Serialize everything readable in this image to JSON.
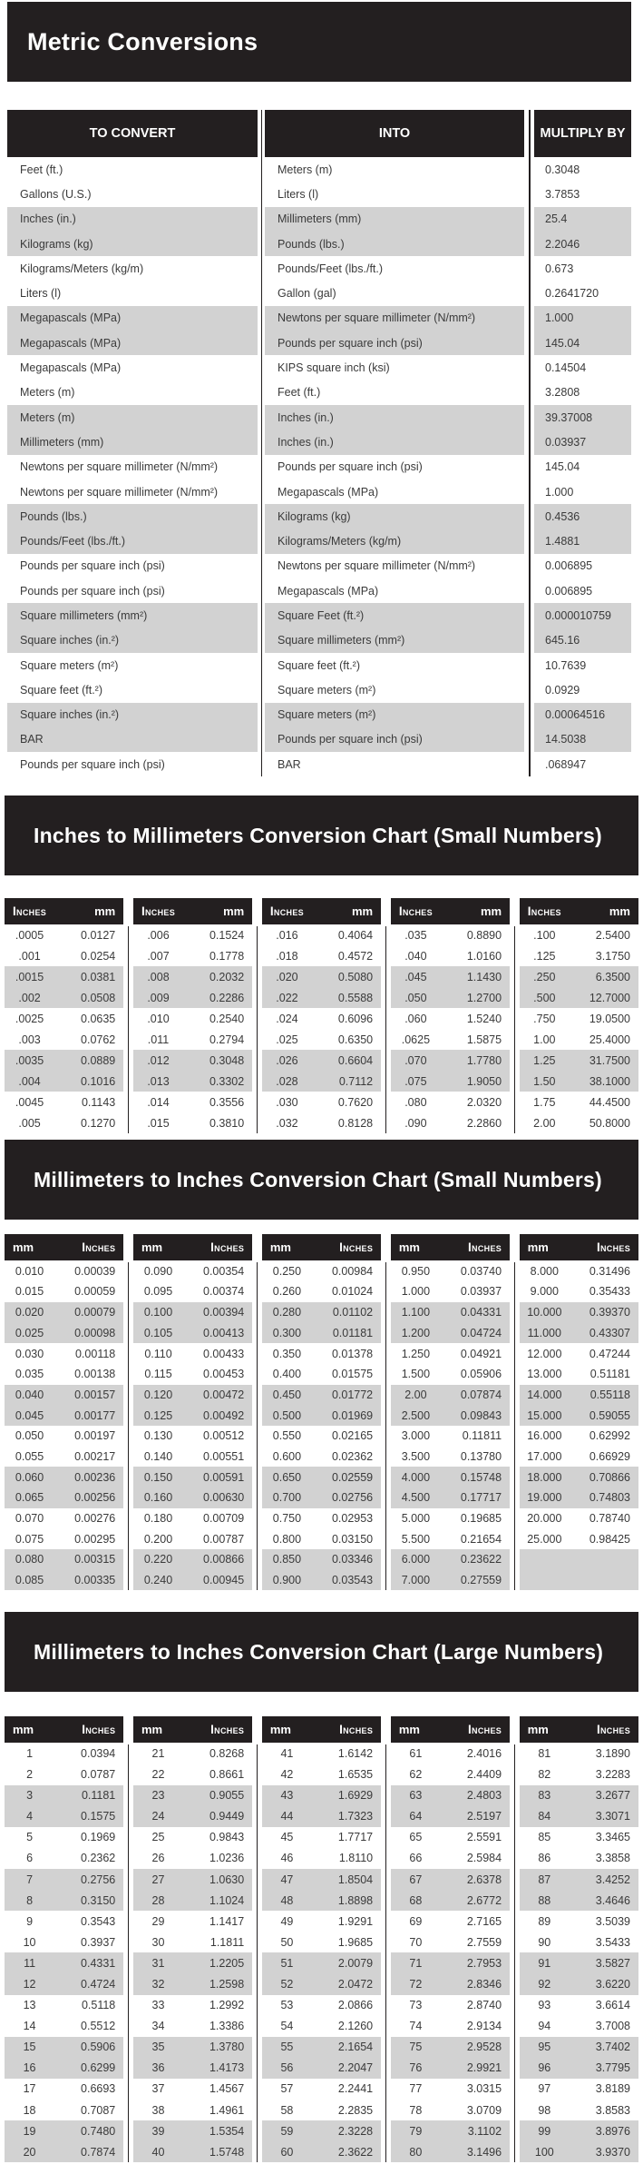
{
  "banners": {
    "main": "Metric Conversions",
    "in_to_mm": "Inches to Millimeters Conversion Chart  (Small Numbers)",
    "mm_to_in_small": "Millimeters to Inches Conversion Chart (Small Numbers)",
    "mm_to_in_large": "Millimeters to Inches Conversion Chart (Large Numbers)"
  },
  "colors": {
    "banner_bg": "#231f20",
    "row_alt": "#d2d2d2",
    "body_text": "#3a3a3a",
    "header_text": "#ffffff"
  },
  "metric_table": {
    "headers": [
      "TO CONVERT",
      "INTO",
      "MULTIPLY BY"
    ],
    "rows": [
      {
        "from": "Feet (ft.)",
        "into": "Meters (m)",
        "factor": "0.3048"
      },
      {
        "from": "Gallons (U.S.)",
        "into": "Liters (l)",
        "factor": "3.7853"
      },
      {
        "from": "Inches (in.)",
        "into": "Millimeters (mm)",
        "factor": "25.4"
      },
      {
        "from": "Kilograms (kg)",
        "into": "Pounds (lbs.)",
        "factor": "2.2046"
      },
      {
        "from": "Kilograms/Meters (kg/m)",
        "into": "Pounds/Feet (lbs./ft.)",
        "factor": "0.673"
      },
      {
        "from": "Liters (l)",
        "into": "Gallon (gal)",
        "factor": "0.2641720"
      },
      {
        "from": "Megapascals  (MPa)",
        "into": "Newtons per square millimeter (N/mm²)",
        "factor": "1.000"
      },
      {
        "from": "Megapascals  (MPa)",
        "into": "Pounds per square inch (psi)",
        "factor": "145.04"
      },
      {
        "from": "Megapascals  (MPa)",
        "into": "KIPS square inch (ksi)",
        "factor": "0.14504"
      },
      {
        "from": "Meters (m)",
        "into": "Feet (ft.)",
        "factor": "3.2808"
      },
      {
        "from": "Meters (m)",
        "into": "Inches (in.)",
        "factor": "39.37008"
      },
      {
        "from": "Millimeters (mm)",
        "into": "Inches (in.)",
        "factor": "0.03937"
      },
      {
        "from": "Newtons per square millimeter (N/mm²)",
        "into": "Pounds per square inch (psi)",
        "factor": "145.04"
      },
      {
        "from": "Newtons per square millimeter (N/mm²)",
        "into": "Megapascals (MPa)",
        "factor": "1.000"
      },
      {
        "from": "Pounds (lbs.)",
        "into": "Kilograms (kg)",
        "factor": "0.4536"
      },
      {
        "from": "Pounds/Feet (lbs./ft.)",
        "into": "Kilograms/Meters (kg/m)",
        "factor": "1.4881"
      },
      {
        "from": "Pounds per square inch (psi)",
        "into": "Newtons per square millimeter (N/mm²)",
        "factor": "0.006895"
      },
      {
        "from": "Pounds per square inch (psi)",
        "into": "Megapascals (MPa)",
        "factor": "0.006895"
      },
      {
        "from": "Square millimeters (mm²)",
        "into": "Square Feet (ft.²)",
        "factor": "0.000010759"
      },
      {
        "from": "Square inches (in.²)",
        "into": "Square millimeters (mm²)",
        "factor": "645.16"
      },
      {
        "from": "Square meters (m²)",
        "into": "Square feet (ft.²)",
        "factor": "10.7639"
      },
      {
        "from": "Square feet (ft.²)",
        "into": "Square meters (m²)",
        "factor": "0.0929"
      },
      {
        "from": "Square inches (in.²)",
        "into": "Square meters (m²)",
        "factor": "0.00064516"
      },
      {
        "from": "BAR",
        "into": "Pounds per square inch (psi)",
        "factor": "14.5038"
      },
      {
        "from": "Pounds per square inch (psi)",
        "into": "BAR",
        "factor": ".068947"
      }
    ]
  },
  "in_to_mm": {
    "col_headers": [
      "Inches",
      "mm"
    ],
    "groups": [
      [
        [
          ".0005",
          "0.0127"
        ],
        [
          ".001",
          "0.0254"
        ],
        [
          ".0015",
          "0.0381"
        ],
        [
          ".002",
          "0.0508"
        ],
        [
          ".0025",
          "0.0635"
        ],
        [
          ".003",
          "0.0762"
        ],
        [
          ".0035",
          "0.0889"
        ],
        [
          ".004",
          "0.1016"
        ],
        [
          ".0045",
          "0.1143"
        ],
        [
          ".005",
          "0.1270"
        ]
      ],
      [
        [
          ".006",
          "0.1524"
        ],
        [
          ".007",
          "0.1778"
        ],
        [
          ".008",
          "0.2032"
        ],
        [
          ".009",
          "0.2286"
        ],
        [
          ".010",
          "0.2540"
        ],
        [
          ".011",
          "0.2794"
        ],
        [
          ".012",
          "0.3048"
        ],
        [
          ".013",
          "0.3302"
        ],
        [
          ".014",
          "0.3556"
        ],
        [
          ".015",
          "0.3810"
        ]
      ],
      [
        [
          ".016",
          "0.4064"
        ],
        [
          ".018",
          "0.4572"
        ],
        [
          ".020",
          "0.5080"
        ],
        [
          ".022",
          "0.5588"
        ],
        [
          ".024",
          "0.6096"
        ],
        [
          ".025",
          "0.6350"
        ],
        [
          ".026",
          "0.6604"
        ],
        [
          ".028",
          "0.7112"
        ],
        [
          ".030",
          "0.7620"
        ],
        [
          ".032",
          "0.8128"
        ]
      ],
      [
        [
          ".035",
          "0.8890"
        ],
        [
          ".040",
          "1.0160"
        ],
        [
          ".045",
          "1.1430"
        ],
        [
          ".050",
          "1.2700"
        ],
        [
          ".060",
          "1.5240"
        ],
        [
          ".0625",
          "1.5875"
        ],
        [
          ".070",
          "1.7780"
        ],
        [
          ".075",
          "1.9050"
        ],
        [
          ".080",
          "2.0320"
        ],
        [
          ".090",
          "2.2860"
        ]
      ],
      [
        [
          ".100",
          "2.5400"
        ],
        [
          ".125",
          "3.1750"
        ],
        [
          ".250",
          "6.3500"
        ],
        [
          ".500",
          "12.7000"
        ],
        [
          ".750",
          "19.0500"
        ],
        [
          "1.00",
          "25.4000"
        ],
        [
          "1.25",
          "31.7500"
        ],
        [
          "1.50",
          "38.1000"
        ],
        [
          "1.75",
          "44.4500"
        ],
        [
          "2.00",
          "50.8000"
        ]
      ]
    ]
  },
  "mm_to_in_small": {
    "col_headers": [
      "mm",
      "Inches"
    ],
    "groups": [
      [
        [
          "0.010",
          "0.00039"
        ],
        [
          "0.015",
          "0.00059"
        ],
        [
          "0.020",
          "0.00079"
        ],
        [
          "0.025",
          "0.00098"
        ],
        [
          "0.030",
          "0.00118"
        ],
        [
          "0.035",
          "0.00138"
        ],
        [
          "0.040",
          "0.00157"
        ],
        [
          "0.045",
          "0.00177"
        ],
        [
          "0.050",
          "0.00197"
        ],
        [
          "0.055",
          "0.00217"
        ],
        [
          "0.060",
          "0.00236"
        ],
        [
          "0.065",
          "0.00256"
        ],
        [
          "0.070",
          "0.00276"
        ],
        [
          "0.075",
          "0.00295"
        ],
        [
          "0.080",
          "0.00315"
        ],
        [
          "0.085",
          "0.00335"
        ]
      ],
      [
        [
          "0.090",
          "0.00354"
        ],
        [
          "0.095",
          "0.00374"
        ],
        [
          "0.100",
          "0.00394"
        ],
        [
          "0.105",
          "0.00413"
        ],
        [
          "0.110",
          "0.00433"
        ],
        [
          "0.115",
          "0.00453"
        ],
        [
          "0.120",
          "0.00472"
        ],
        [
          "0.125",
          "0.00492"
        ],
        [
          "0.130",
          "0.00512"
        ],
        [
          "0.140",
          "0.00551"
        ],
        [
          "0.150",
          "0.00591"
        ],
        [
          "0.160",
          "0.00630"
        ],
        [
          "0.180",
          "0.00709"
        ],
        [
          "0.200",
          "0.00787"
        ],
        [
          "0.220",
          "0.00866"
        ],
        [
          "0.240",
          "0.00945"
        ]
      ],
      [
        [
          "0.250",
          "0.00984"
        ],
        [
          "0.260",
          "0.01024"
        ],
        [
          "0.280",
          "0.01102"
        ],
        [
          "0.300",
          "0.01181"
        ],
        [
          "0.350",
          "0.01378"
        ],
        [
          "0.400",
          "0.01575"
        ],
        [
          "0.450",
          "0.01772"
        ],
        [
          "0.500",
          "0.01969"
        ],
        [
          "0.550",
          "0.02165"
        ],
        [
          "0.600",
          "0.02362"
        ],
        [
          "0.650",
          "0.02559"
        ],
        [
          "0.700",
          "0.02756"
        ],
        [
          "0.750",
          "0.02953"
        ],
        [
          "0.800",
          "0.03150"
        ],
        [
          "0.850",
          "0.03346"
        ],
        [
          "0.900",
          "0.03543"
        ]
      ],
      [
        [
          "0.950",
          "0.03740"
        ],
        [
          "1.000",
          "0.03937"
        ],
        [
          "1.100",
          "0.04331"
        ],
        [
          "1.200",
          "0.04724"
        ],
        [
          "1.250",
          "0.04921"
        ],
        [
          "1.500",
          "0.05906"
        ],
        [
          "2.00",
          "0.07874"
        ],
        [
          "2.500",
          "0.09843"
        ],
        [
          "3.000",
          "0.11811"
        ],
        [
          "3.500",
          "0.13780"
        ],
        [
          "4.000",
          "0.15748"
        ],
        [
          "4.500",
          "0.17717"
        ],
        [
          "5.000",
          "0.19685"
        ],
        [
          "5.500",
          "0.21654"
        ],
        [
          "6.000",
          "0.23622"
        ],
        [
          "7.000",
          "0.27559"
        ]
      ],
      [
        [
          "8.000",
          "0.31496"
        ],
        [
          "9.000",
          "0.35433"
        ],
        [
          "10.000",
          "0.39370"
        ],
        [
          "11.000",
          "0.43307"
        ],
        [
          "12.000",
          "0.47244"
        ],
        [
          "13.000",
          "0.51181"
        ],
        [
          "14.000",
          "0.55118"
        ],
        [
          "15.000",
          "0.59055"
        ],
        [
          "16.000",
          "0.62992"
        ],
        [
          "17.000",
          "0.66929"
        ],
        [
          "18.000",
          "0.70866"
        ],
        [
          "19.000",
          "0.74803"
        ],
        [
          "20.000",
          "0.78740"
        ],
        [
          "25.000",
          "0.98425"
        ],
        [
          "",
          ""
        ],
        [
          "",
          ""
        ]
      ]
    ]
  },
  "mm_to_in_large": {
    "col_headers": [
      "mm",
      "Inches"
    ],
    "groups": [
      [
        [
          "1",
          "0.0394"
        ],
        [
          "2",
          "0.0787"
        ],
        [
          "3",
          "0.1181"
        ],
        [
          "4",
          "0.1575"
        ],
        [
          "5",
          "0.1969"
        ],
        [
          "6",
          "0.2362"
        ],
        [
          "7",
          "0.2756"
        ],
        [
          "8",
          "0.3150"
        ],
        [
          "9",
          "0.3543"
        ],
        [
          "10",
          "0.3937"
        ],
        [
          "11",
          "0.4331"
        ],
        [
          "12",
          "0.4724"
        ],
        [
          "13",
          "0.5118"
        ],
        [
          "14",
          "0.5512"
        ],
        [
          "15",
          "0.5906"
        ],
        [
          "16",
          "0.6299"
        ],
        [
          "17",
          "0.6693"
        ],
        [
          "18",
          "0.7087"
        ],
        [
          "19",
          "0.7480"
        ],
        [
          "20",
          "0.7874"
        ]
      ],
      [
        [
          "21",
          "0.8268"
        ],
        [
          "22",
          "0.8661"
        ],
        [
          "23",
          "0.9055"
        ],
        [
          "24",
          "0.9449"
        ],
        [
          "25",
          "0.9843"
        ],
        [
          "26",
          "1.0236"
        ],
        [
          "27",
          "1.0630"
        ],
        [
          "28",
          "1.1024"
        ],
        [
          "29",
          "1.1417"
        ],
        [
          "30",
          "1.1811"
        ],
        [
          "31",
          "1.2205"
        ],
        [
          "32",
          "1.2598"
        ],
        [
          "33",
          "1.2992"
        ],
        [
          "34",
          "1.3386"
        ],
        [
          "35",
          "1.3780"
        ],
        [
          "36",
          "1.4173"
        ],
        [
          "37",
          "1.4567"
        ],
        [
          "38",
          "1.4961"
        ],
        [
          "39",
          "1.5354"
        ],
        [
          "40",
          "1.5748"
        ]
      ],
      [
        [
          "41",
          "1.6142"
        ],
        [
          "42",
          "1.6535"
        ],
        [
          "43",
          "1.6929"
        ],
        [
          "44",
          "1.7323"
        ],
        [
          "45",
          "1.7717"
        ],
        [
          "46",
          "1.8110"
        ],
        [
          "47",
          "1.8504"
        ],
        [
          "48",
          "1.8898"
        ],
        [
          "49",
          "1.9291"
        ],
        [
          "50",
          "1.9685"
        ],
        [
          "51",
          "2.0079"
        ],
        [
          "52",
          "2.0472"
        ],
        [
          "53",
          "2.0866"
        ],
        [
          "54",
          "2.1260"
        ],
        [
          "55",
          "2.1654"
        ],
        [
          "56",
          "2.2047"
        ],
        [
          "57",
          "2.2441"
        ],
        [
          "58",
          "2.2835"
        ],
        [
          "59",
          "2.3228"
        ],
        [
          "60",
          "2.3622"
        ]
      ],
      [
        [
          "61",
          "2.4016"
        ],
        [
          "62",
          "2.4409"
        ],
        [
          "63",
          "2.4803"
        ],
        [
          "64",
          "2.5197"
        ],
        [
          "65",
          "2.5591"
        ],
        [
          "66",
          "2.5984"
        ],
        [
          "67",
          "2.6378"
        ],
        [
          "68",
          "2.6772"
        ],
        [
          "69",
          "2.7165"
        ],
        [
          "70",
          "2.7559"
        ],
        [
          "71",
          "2.7953"
        ],
        [
          "72",
          "2.8346"
        ],
        [
          "73",
          "2.8740"
        ],
        [
          "74",
          "2.9134"
        ],
        [
          "75",
          "2.9528"
        ],
        [
          "76",
          "2.9921"
        ],
        [
          "77",
          "3.0315"
        ],
        [
          "78",
          "3.0709"
        ],
        [
          "79",
          "3.1102"
        ],
        [
          "80",
          "3.1496"
        ]
      ],
      [
        [
          "81",
          "3.1890"
        ],
        [
          "82",
          "3.2283"
        ],
        [
          "83",
          "3.2677"
        ],
        [
          "84",
          "3.3071"
        ],
        [
          "85",
          "3.3465"
        ],
        [
          "86",
          "3.3858"
        ],
        [
          "87",
          "3.4252"
        ],
        [
          "88",
          "3.4646"
        ],
        [
          "89",
          "3.5039"
        ],
        [
          "90",
          "3.5433"
        ],
        [
          "91",
          "3.5827"
        ],
        [
          "92",
          "3.6220"
        ],
        [
          "93",
          "3.6614"
        ],
        [
          "94",
          "3.7008"
        ],
        [
          "95",
          "3.7402"
        ],
        [
          "96",
          "3.7795"
        ],
        [
          "97",
          "3.8189"
        ],
        [
          "98",
          "3.8583"
        ],
        [
          "99",
          "3.8976"
        ],
        [
          "100",
          "3.9370"
        ]
      ]
    ]
  }
}
